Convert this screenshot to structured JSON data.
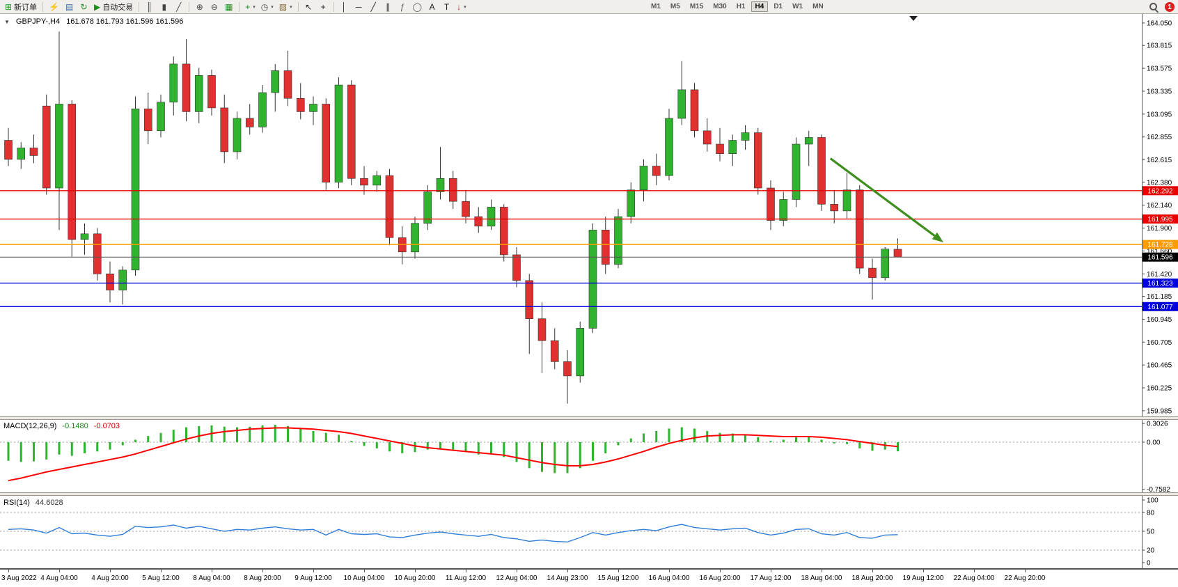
{
  "toolbar": {
    "items": [
      {
        "name": "new-order-button",
        "glyph": "⊞",
        "color": "#18921b",
        "label": "新订单"
      },
      {
        "sep": true
      },
      {
        "name": "market-watch-button",
        "glyph": "⚡",
        "color": "#d89c12"
      },
      {
        "name": "data-window-button",
        "glyph": "▤",
        "color": "#3a6ea5"
      },
      {
        "name": "refresh-button",
        "glyph": "↻",
        "color": "#18921b"
      },
      {
        "name": "autotrading-button",
        "glyph": "▶",
        "color": "#18921b",
        "label": "自动交易"
      },
      {
        "sep": true
      },
      {
        "name": "bar-chart-button",
        "glyph": "║",
        "color": "#444444"
      },
      {
        "name": "candlestick-chart-button",
        "glyph": "▮",
        "color": "#444444"
      },
      {
        "name": "line-chart-button",
        "glyph": "╱",
        "color": "#444444"
      },
      {
        "sep": true
      },
      {
        "name": "zoom-in-button",
        "glyph": "⊕",
        "color": "#444444"
      },
      {
        "name": "zoom-out-button",
        "glyph": "⊖",
        "color": "#444444"
      },
      {
        "name": "tile-windows-button",
        "glyph": "▦",
        "color": "#18921b"
      },
      {
        "sep": true
      },
      {
        "name": "indicators-button",
        "glyph": "+",
        "color": "#18921b",
        "dd": true
      },
      {
        "name": "periods-button",
        "glyph": "◷",
        "color": "#444444",
        "dd": true
      },
      {
        "name": "templates-button",
        "glyph": "▧",
        "color": "#8a6d3b",
        "dd": true
      },
      {
        "sep": true
      },
      {
        "name": "cursor-button",
        "glyph": "↖",
        "color": "#222222"
      },
      {
        "name": "crosshair-button",
        "glyph": "+",
        "color": "#222222"
      },
      {
        "sep": true
      },
      {
        "name": "vertical-line-button",
        "glyph": "│",
        "color": "#222222"
      },
      {
        "name": "horizontal-line-button",
        "glyph": "─",
        "color": "#222222"
      },
      {
        "name": "trendline-button",
        "glyph": "╱",
        "color": "#222222"
      },
      {
        "name": "channel-button",
        "glyph": "∥",
        "color": "#222222"
      },
      {
        "name": "fibonacci-button",
        "glyph": "ƒ",
        "color": "#555555"
      },
      {
        "name": "shapes-button",
        "glyph": "◯",
        "color": "#555555"
      },
      {
        "name": "text-button",
        "glyph": "A",
        "color": "#222222"
      },
      {
        "name": "label-button",
        "glyph": "T",
        "color": "#222222"
      },
      {
        "name": "arrows-button",
        "glyph": "↓",
        "color": "#b0262a",
        "dd": true
      }
    ],
    "timeframes": {
      "items": [
        "M1",
        "M5",
        "M15",
        "M30",
        "H1",
        "H4",
        "D1",
        "W1",
        "MN"
      ],
      "active": "H4"
    },
    "notification_count": "1"
  },
  "chart": {
    "title": "GBPJPY-,H4",
    "quote": "161.678 161.793 161.596 161.596",
    "colors": {
      "up": "#30b430",
      "down": "#e03030",
      "outline": "#333333",
      "bid_line": "#555555",
      "macd_histogram": "#2eb52e",
      "macd_signal": "#ff0000",
      "rsi_line": "#2f7ed8"
    },
    "price_axis": {
      "labels": [
        "164.050",
        "163.815",
        "163.575",
        "163.335",
        "163.095",
        "162.855",
        "162.615",
        "162.380",
        "162.140",
        "161.900",
        "161.660",
        "161.420",
        "161.185",
        "160.945",
        "160.705",
        "160.465",
        "160.225",
        "159.985"
      ]
    },
    "hlines": [
      {
        "price": 162.292,
        "label": "162.292",
        "color": "#e60000"
      },
      {
        "price": 161.995,
        "label": "161.995",
        "color": "#e60000"
      },
      {
        "price": 161.728,
        "label": "161.728",
        "color": "#ff9d00"
      },
      {
        "price": 161.323,
        "label": "161.323",
        "color": "#0000dd"
      },
      {
        "price": 161.077,
        "label": "161.077",
        "color": "#0000dd"
      }
    ],
    "bid": {
      "price": 161.596,
      "label": "161.596",
      "color": "#000000"
    },
    "arrow": {
      "from_bar": 64.7,
      "from_price": 162.63,
      "to_bar": 73.6,
      "to_price": 161.75,
      "color": "#3f8f1f"
    }
  },
  "chart_data": {
    "type": "candlestick",
    "symbol": "GBPJPY-",
    "timeframe": "H4",
    "price_range": {
      "min": 159.985,
      "max": 164.05
    },
    "ohlc": [
      [
        162.82,
        162.95,
        162.55,
        162.62
      ],
      [
        162.62,
        162.8,
        162.52,
        162.74
      ],
      [
        162.74,
        162.88,
        162.58,
        162.66
      ],
      [
        163.18,
        163.3,
        162.25,
        162.32
      ],
      [
        162.32,
        163.96,
        161.88,
        163.2
      ],
      [
        163.2,
        163.24,
        161.6,
        161.78
      ],
      [
        161.78,
        161.95,
        161.62,
        161.84
      ],
      [
        161.84,
        161.9,
        161.35,
        161.42
      ],
      [
        161.42,
        161.55,
        161.12,
        161.25
      ],
      [
        161.25,
        161.5,
        161.1,
        161.46
      ],
      [
        161.46,
        163.28,
        161.4,
        163.15
      ],
      [
        163.15,
        163.32,
        162.78,
        162.92
      ],
      [
        162.92,
        163.3,
        162.85,
        163.22
      ],
      [
        163.22,
        163.7,
        163.08,
        163.62
      ],
      [
        163.62,
        163.88,
        163.02,
        163.12
      ],
      [
        163.12,
        163.58,
        163.0,
        163.5
      ],
      [
        163.5,
        163.56,
        163.08,
        163.16
      ],
      [
        163.16,
        163.3,
        162.58,
        162.7
      ],
      [
        162.7,
        163.12,
        162.62,
        163.05
      ],
      [
        163.05,
        163.2,
        162.88,
        162.96
      ],
      [
        162.96,
        163.4,
        162.9,
        163.32
      ],
      [
        163.32,
        163.62,
        163.12,
        163.55
      ],
      [
        163.55,
        163.76,
        163.18,
        163.26
      ],
      [
        163.26,
        163.42,
        163.04,
        163.12
      ],
      [
        163.12,
        163.28,
        162.98,
        163.2
      ],
      [
        163.2,
        163.26,
        162.3,
        162.38
      ],
      [
        162.38,
        163.48,
        162.32,
        163.4
      ],
      [
        163.4,
        163.45,
        162.35,
        162.42
      ],
      [
        162.42,
        162.55,
        162.25,
        162.35
      ],
      [
        162.35,
        162.5,
        162.28,
        162.45
      ],
      [
        162.45,
        162.52,
        161.72,
        161.8
      ],
      [
        161.8,
        161.92,
        161.52,
        161.65
      ],
      [
        161.65,
        162.02,
        161.58,
        161.95
      ],
      [
        161.95,
        162.35,
        161.88,
        162.28
      ],
      [
        162.28,
        162.75,
        162.2,
        162.42
      ],
      [
        162.42,
        162.5,
        162.1,
        162.18
      ],
      [
        162.18,
        162.3,
        161.95,
        162.02
      ],
      [
        162.02,
        162.12,
        161.85,
        161.92
      ],
      [
        161.92,
        162.2,
        161.88,
        162.12
      ],
      [
        162.12,
        162.15,
        161.55,
        161.62
      ],
      [
        161.62,
        161.7,
        161.28,
        161.35
      ],
      [
        161.35,
        161.42,
        160.58,
        160.95
      ],
      [
        160.95,
        161.12,
        160.38,
        160.72
      ],
      [
        160.72,
        160.85,
        160.42,
        160.5
      ],
      [
        160.5,
        160.62,
        160.06,
        160.35
      ],
      [
        160.35,
        160.92,
        160.28,
        160.85
      ],
      [
        160.85,
        161.95,
        160.8,
        161.88
      ],
      [
        161.88,
        162.02,
        161.42,
        161.52
      ],
      [
        161.52,
        162.1,
        161.48,
        162.02
      ],
      [
        162.02,
        162.38,
        161.95,
        162.3
      ],
      [
        162.3,
        162.62,
        162.18,
        162.55
      ],
      [
        162.55,
        162.68,
        162.35,
        162.45
      ],
      [
        162.45,
        163.15,
        162.4,
        163.05
      ],
      [
        163.05,
        163.65,
        162.98,
        163.35
      ],
      [
        163.35,
        163.42,
        162.85,
        162.92
      ],
      [
        162.92,
        163.05,
        162.7,
        162.78
      ],
      [
        162.78,
        162.95,
        162.6,
        162.68
      ],
      [
        162.68,
        162.88,
        162.55,
        162.82
      ],
      [
        162.82,
        162.98,
        162.72,
        162.9
      ],
      [
        162.9,
        162.95,
        162.25,
        162.32
      ],
      [
        162.32,
        162.4,
        161.88,
        161.98
      ],
      [
        161.98,
        162.28,
        161.92,
        162.2
      ],
      [
        162.2,
        162.85,
        162.12,
        162.78
      ],
      [
        162.78,
        162.92,
        162.55,
        162.85
      ],
      [
        162.85,
        162.88,
        162.08,
        162.15
      ],
      [
        162.15,
        162.3,
        161.95,
        162.08
      ],
      [
        162.08,
        162.48,
        162.0,
        162.3
      ],
      [
        162.3,
        162.35,
        161.42,
        161.48
      ],
      [
        161.48,
        161.58,
        161.15,
        161.38
      ],
      [
        161.38,
        161.7,
        161.35,
        161.68
      ],
      [
        161.678,
        161.793,
        161.596,
        161.596
      ]
    ],
    "time_labels": [
      "3 Aug 2022",
      "4 Aug 04:00",
      "4 Aug 20:00",
      "5 Aug 12:00",
      "8 Aug 04:00",
      "8 Aug 20:00",
      "9 Aug 12:00",
      "10 Aug 04:00",
      "10 Aug 20:00",
      "11 Aug 12:00",
      "12 Aug 04:00",
      "14 Aug 23:00",
      "15 Aug 12:00",
      "16 Aug 04:00",
      "16 Aug 20:00",
      "17 Aug 12:00",
      "18 Aug 04:00",
      "18 Aug 20:00",
      "19 Aug 12:00",
      "22 Aug 04:00",
      "22 Aug 20:00"
    ],
    "indicators": {
      "macd": {
        "label": "MACD(12,26,9)",
        "main_value": "-0.1480",
        "signal_value": "-0.0703",
        "axis_labels": [
          "0.3026",
          "0.00",
          "-0.7582"
        ],
        "range": {
          "min": -0.7582,
          "max": 0.3026
        },
        "histogram": [
          -0.3,
          -0.32,
          -0.31,
          -0.28,
          -0.2,
          -0.22,
          -0.18,
          -0.15,
          -0.12,
          -0.05,
          0.04,
          0.1,
          0.15,
          0.2,
          0.24,
          0.26,
          0.27,
          0.25,
          0.24,
          0.25,
          0.27,
          0.28,
          0.26,
          0.22,
          0.18,
          0.15,
          0.12,
          0.02,
          -0.06,
          -0.1,
          -0.15,
          -0.18,
          -0.16,
          -0.12,
          -0.1,
          -0.12,
          -0.16,
          -0.2,
          -0.18,
          -0.24,
          -0.32,
          -0.42,
          -0.48,
          -0.5,
          -0.5,
          -0.42,
          -0.3,
          -0.18,
          -0.05,
          0.06,
          0.14,
          0.18,
          0.22,
          0.24,
          0.22,
          0.18,
          0.15,
          0.14,
          0.13,
          0.08,
          0.02,
          0.04,
          0.08,
          0.1,
          0.04,
          -0.02,
          -0.03,
          -0.1,
          -0.14,
          -0.12,
          -0.148
        ],
        "signal": [
          -0.62,
          -0.58,
          -0.53,
          -0.48,
          -0.44,
          -0.4,
          -0.36,
          -0.32,
          -0.28,
          -0.24,
          -0.19,
          -0.13,
          -0.07,
          -0.01,
          0.05,
          0.1,
          0.14,
          0.17,
          0.19,
          0.21,
          0.22,
          0.23,
          0.23,
          0.22,
          0.21,
          0.19,
          0.17,
          0.14,
          0.1,
          0.06,
          0.02,
          -0.02,
          -0.06,
          -0.09,
          -0.11,
          -0.13,
          -0.15,
          -0.17,
          -0.19,
          -0.21,
          -0.25,
          -0.29,
          -0.33,
          -0.36,
          -0.38,
          -0.38,
          -0.36,
          -0.32,
          -0.27,
          -0.21,
          -0.15,
          -0.08,
          -0.02,
          0.03,
          0.07,
          0.1,
          0.11,
          0.12,
          0.12,
          0.11,
          0.1,
          0.09,
          0.09,
          0.09,
          0.08,
          0.06,
          0.04,
          0.01,
          -0.02,
          -0.05,
          -0.0703
        ]
      },
      "rsi": {
        "label": "RSI(14)",
        "value": "44.6028",
        "axis_labels": [
          "100",
          "80",
          "50",
          "20",
          "0"
        ],
        "levels": [
          80,
          50,
          20
        ],
        "range": {
          "min": 0,
          "max": 100
        },
        "values": [
          53,
          54,
          52,
          47,
          56,
          46,
          47,
          44,
          42,
          45,
          58,
          56,
          57,
          60,
          55,
          58,
          54,
          50,
          53,
          52,
          55,
          57,
          54,
          52,
          53,
          44,
          53,
          46,
          45,
          46,
          41,
          40,
          44,
          47,
          49,
          46,
          44,
          42,
          45,
          40,
          38,
          34,
          36,
          34,
          33,
          40,
          48,
          44,
          48,
          51,
          53,
          51,
          57,
          61,
          56,
          54,
          52,
          54,
          55,
          48,
          44,
          47,
          53,
          54,
          46,
          44,
          48,
          40,
          39,
          44,
          44.6
        ]
      }
    }
  }
}
